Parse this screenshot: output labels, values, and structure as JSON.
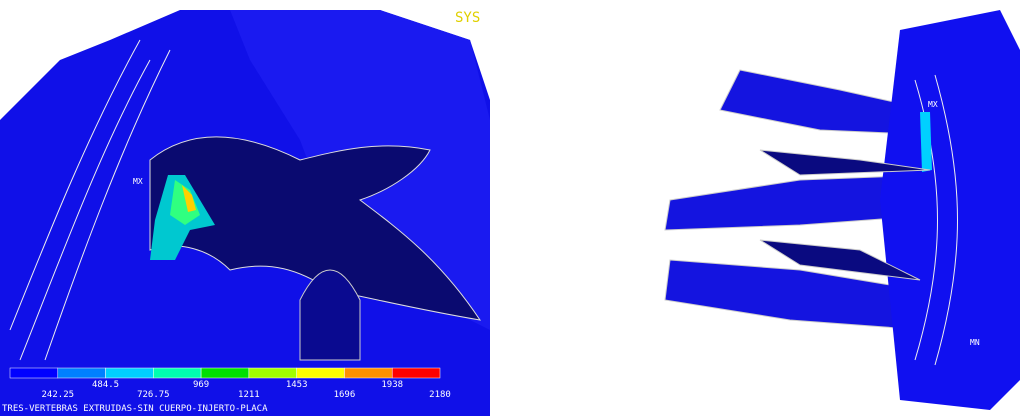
{
  "header": {
    "label": "SYS"
  },
  "left_view": {
    "marker": "MX"
  },
  "right_view": {
    "marker_top": "MX",
    "marker_bottom": "MN"
  },
  "legend": {
    "labels": [
      "242.25",
      "484.5",
      "726.75",
      "969",
      "1211",
      "1453",
      "1696",
      "1938",
      "2180"
    ],
    "colors": [
      "#0000ff",
      "#0080ff",
      "#00d0ff",
      "#00ffb0",
      "#00e000",
      "#a0ff00",
      "#ffff00",
      "#ff9000",
      "#ff0000"
    ]
  },
  "footer": {
    "caption": "TRES-VERTEBRAS EXTRUIDAS-SIN CUERPO-INJERTO-PLACA"
  }
}
